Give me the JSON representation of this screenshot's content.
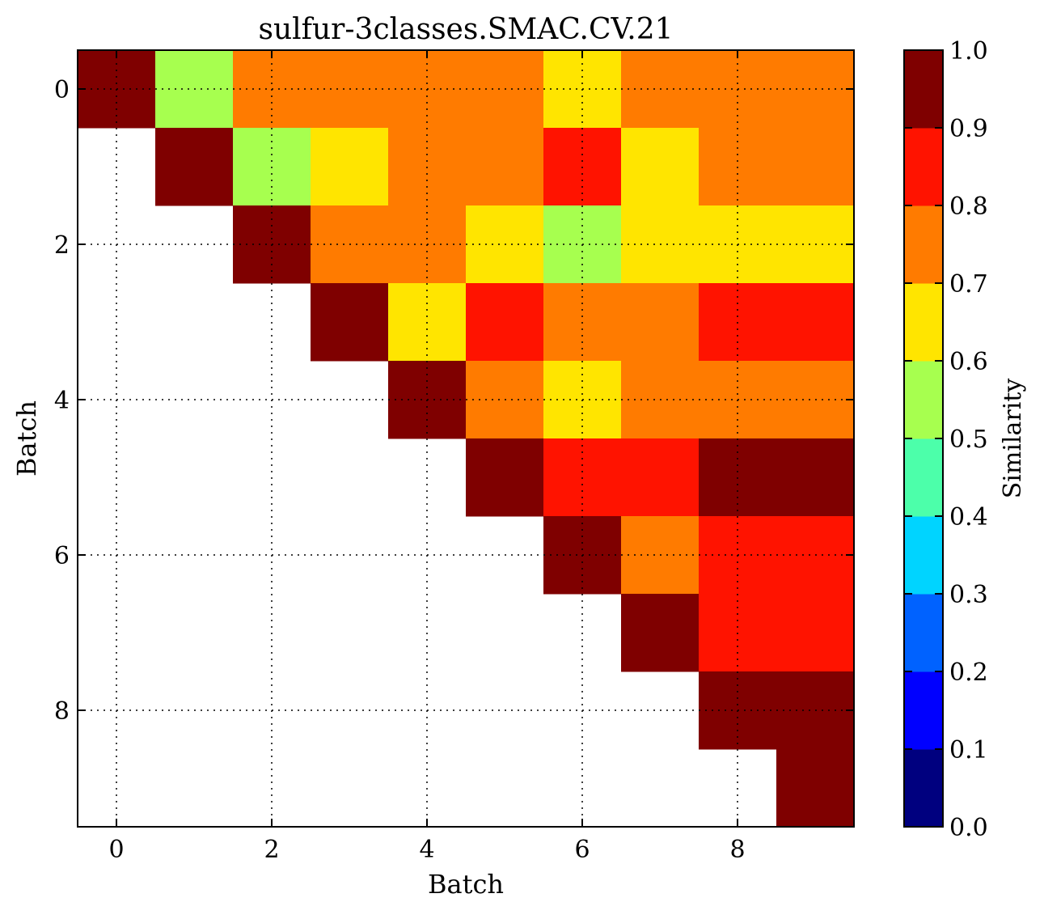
{
  "chart_data": {
    "type": "heatmap",
    "title": "sulfur-3classes.SMAC.CV.21",
    "xlabel": "Batch",
    "ylabel": "Batch",
    "colorbar_label": "Similarity",
    "x_ticks": [
      0,
      2,
      4,
      6,
      8
    ],
    "y_ticks": [
      0,
      2,
      4,
      6,
      8
    ],
    "x_range": [
      -0.5,
      9.5
    ],
    "y_range": [
      -0.5,
      9.5
    ],
    "y_inverted": true,
    "grid": "dotted",
    "colorbar_ticks": [
      "0.0",
      "0.1",
      "0.2",
      "0.3",
      "0.4",
      "0.5",
      "0.6",
      "0.7",
      "0.8",
      "0.9",
      "1.0"
    ],
    "colorbar_range": [
      0.0,
      1.0
    ],
    "colormap": "jet",
    "colormap_bins": 10,
    "colormap_colors": [
      "#00007f",
      "#0000ff",
      "#0062ff",
      "#00d4ff",
      "#4cffaa",
      "#a7ff4f",
      "#ffe500",
      "#ff7b00",
      "#ff1300",
      "#7f0000"
    ],
    "matrix": [
      [
        1.0,
        0.55,
        0.75,
        0.75,
        0.75,
        0.75,
        0.65,
        0.75,
        0.75,
        0.75
      ],
      [
        null,
        1.0,
        0.55,
        0.65,
        0.75,
        0.75,
        0.85,
        0.65,
        0.75,
        0.75
      ],
      [
        null,
        null,
        1.0,
        0.75,
        0.75,
        0.65,
        0.55,
        0.65,
        0.65,
        0.65
      ],
      [
        null,
        null,
        null,
        1.0,
        0.65,
        0.85,
        0.75,
        0.75,
        0.85,
        0.85
      ],
      [
        null,
        null,
        null,
        null,
        1.0,
        0.75,
        0.65,
        0.75,
        0.75,
        0.75
      ],
      [
        null,
        null,
        null,
        null,
        null,
        1.0,
        0.85,
        0.85,
        0.95,
        0.95
      ],
      [
        null,
        null,
        null,
        null,
        null,
        null,
        1.0,
        0.75,
        0.85,
        0.85
      ],
      [
        null,
        null,
        null,
        null,
        null,
        null,
        null,
        1.0,
        0.85,
        0.85
      ],
      [
        null,
        null,
        null,
        null,
        null,
        null,
        null,
        null,
        1.0,
        0.95
      ],
      [
        null,
        null,
        null,
        null,
        null,
        null,
        null,
        null,
        null,
        1.0
      ]
    ]
  }
}
